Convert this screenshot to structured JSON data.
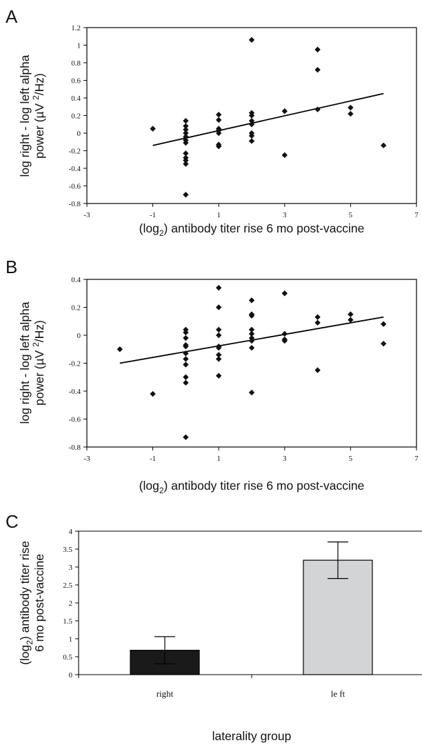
{
  "chart_data": [
    {
      "panel": "A",
      "type": "scatter",
      "xlabel_parts": [
        "(log",
        "2",
        ") antibody titer rise 6 mo post-vaccine"
      ],
      "ylabel_lines": [
        "log right - log left alpha",
        "power (µV ",
        "2",
        "/Hz)"
      ],
      "xlim": [
        -3,
        7
      ],
      "ylim": [
        -0.8,
        1.2
      ],
      "xticks": [
        -3,
        -1,
        1,
        3,
        5,
        7
      ],
      "yticks": [
        -0.8,
        -0.6,
        -0.4,
        -0.2,
        0,
        0.2,
        0.4,
        0.6,
        0.8,
        1,
        1.2
      ],
      "points": [
        [
          -1,
          0.05
        ],
        [
          0,
          0.14
        ],
        [
          0,
          0.08
        ],
        [
          0,
          0.04
        ],
        [
          0,
          0.0
        ],
        [
          0,
          -0.04
        ],
        [
          0,
          -0.08
        ],
        [
          0,
          -0.11
        ],
        [
          0,
          -0.23
        ],
        [
          0,
          -0.28
        ],
        [
          0,
          -0.31
        ],
        [
          0,
          -0.35
        ],
        [
          0,
          -0.7
        ],
        [
          1,
          0.21
        ],
        [
          1,
          0.15
        ],
        [
          1,
          0.05
        ],
        [
          1,
          0.03
        ],
        [
          1,
          0.0
        ],
        [
          1,
          -0.13
        ],
        [
          1,
          -0.15
        ],
        [
          2,
          1.06
        ],
        [
          2,
          0.23
        ],
        [
          2,
          0.2
        ],
        [
          2,
          0.14
        ],
        [
          2,
          0.1
        ],
        [
          2,
          0.0
        ],
        [
          2,
          -0.03
        ],
        [
          2,
          -0.09
        ],
        [
          3,
          0.25
        ],
        [
          3,
          -0.25
        ],
        [
          4,
          0.95
        ],
        [
          4,
          0.72
        ],
        [
          4,
          0.27
        ],
        [
          5,
          0.29
        ],
        [
          5,
          0.22
        ],
        [
          6,
          -0.14
        ]
      ],
      "trendline": {
        "x": [
          -1,
          6
        ],
        "y": [
          -0.14,
          0.45
        ]
      }
    },
    {
      "panel": "B",
      "type": "scatter",
      "xlabel_parts": [
        "(log",
        "2",
        ") antibody titer rise 6 mo post-vaccine"
      ],
      "ylabel_lines": [
        "log right - log left alpha",
        "power (µV ",
        "2",
        "/Hz)"
      ],
      "xlim": [
        -3,
        7
      ],
      "ylim": [
        -0.8,
        0.4
      ],
      "xticks": [
        -3,
        -1,
        1,
        3,
        5,
        7
      ],
      "yticks": [
        -0.8,
        -0.6,
        -0.4,
        -0.2,
        0,
        0.2,
        0.4
      ],
      "points": [
        [
          -2,
          -0.1
        ],
        [
          -1,
          -0.42
        ],
        [
          0,
          0.04
        ],
        [
          0,
          0.02
        ],
        [
          0,
          -0.02
        ],
        [
          0,
          -0.07
        ],
        [
          0,
          -0.08
        ],
        [
          0,
          -0.13
        ],
        [
          0,
          -0.17
        ],
        [
          0,
          -0.21
        ],
        [
          0,
          -0.3
        ],
        [
          0,
          -0.34
        ],
        [
          0,
          -0.73
        ],
        [
          1,
          0.34
        ],
        [
          1,
          0.2
        ],
        [
          1,
          0.04
        ],
        [
          1,
          0.0
        ],
        [
          1,
          -0.08
        ],
        [
          1,
          -0.09
        ],
        [
          1,
          -0.14
        ],
        [
          1,
          -0.17
        ],
        [
          1,
          -0.29
        ],
        [
          2,
          0.25
        ],
        [
          2,
          0.15
        ],
        [
          2,
          0.14
        ],
        [
          2,
          0.04
        ],
        [
          2,
          0.01
        ],
        [
          2,
          -0.02
        ],
        [
          2,
          -0.04
        ],
        [
          2,
          -0.09
        ],
        [
          2,
          -0.41
        ],
        [
          3,
          0.3
        ],
        [
          3,
          0.01
        ],
        [
          3,
          -0.03
        ],
        [
          3,
          -0.04
        ],
        [
          4,
          0.13
        ],
        [
          4,
          0.09
        ],
        [
          4,
          -0.25
        ],
        [
          5,
          0.15
        ],
        [
          5,
          0.11
        ],
        [
          6,
          0.08
        ],
        [
          6,
          -0.06
        ]
      ],
      "trendline": {
        "x": [
          -2,
          6
        ],
        "y": [
          -0.2,
          0.13
        ]
      }
    },
    {
      "panel": "C",
      "type": "bar",
      "categories": [
        "right",
        "le ft"
      ],
      "values": [
        0.68,
        3.19
      ],
      "errors": [
        0.38,
        0.51
      ],
      "colors": [
        "#1a1a1a",
        "#d3d4d6"
      ],
      "xlabel": "laterality group",
      "ylabel_lines_parts": [
        [
          "(log",
          "2",
          ") antibody titer rise"
        ],
        [
          "6 mo post-vaccine"
        ]
      ],
      "ylim": [
        0,
        4
      ],
      "yticks": [
        0,
        0.5,
        1,
        1.5,
        2,
        2.5,
        3,
        3.5,
        4
      ]
    }
  ]
}
